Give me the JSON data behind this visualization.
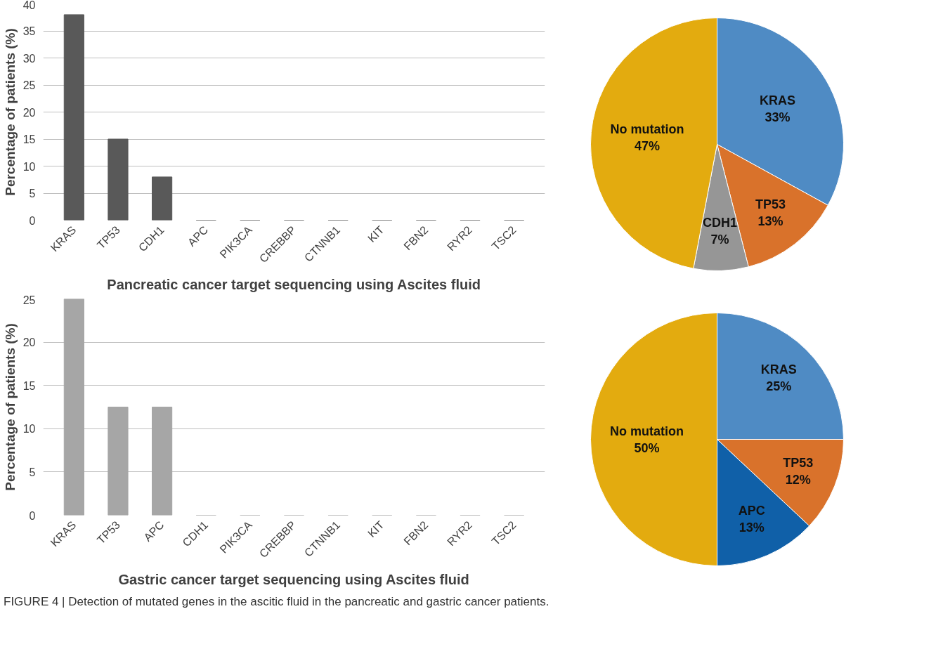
{
  "chart_data": [
    {
      "type": "bar",
      "title": "Pancreatic cancer target sequencing using Ascites fluid",
      "ylabel": "Percentage of patients (%)",
      "categories": [
        "KRAS",
        "TP53",
        "CDH1",
        "APC",
        "PIK3CA",
        "CREBBP",
        "CTNNB1",
        "KIT",
        "FBN2",
        "RYR2",
        "TSC2"
      ],
      "values": [
        38,
        15,
        8,
        0,
        0,
        0,
        0,
        0,
        0,
        0,
        0
      ],
      "color": "#595959",
      "ylim": [
        0,
        40
      ],
      "yticks": [
        0,
        5,
        10,
        15,
        20,
        25,
        30,
        35,
        40
      ],
      "grid": "y"
    },
    {
      "type": "pie",
      "categories": [
        "KRAS",
        "TP53",
        "CDH1",
        "No mutation"
      ],
      "values": [
        33,
        13,
        7,
        47
      ],
      "value_labels": [
        "33%",
        "13%",
        "7%",
        "47%"
      ],
      "colors": [
        "#4f8bc4",
        "#d9722b",
        "#969696",
        "#e3ab0f"
      ]
    },
    {
      "type": "bar",
      "title": "Gastric cancer target sequencing using Ascites fluid",
      "ylabel": "Percentage of patients (%)",
      "categories": [
        "KRAS",
        "TP53",
        "APC",
        "CDH1",
        "PIK3CA",
        "CREBBP",
        "CTNNB1",
        "KIT",
        "FBN2",
        "RYR2",
        "TSC2"
      ],
      "values": [
        25,
        12.5,
        12.5,
        0,
        0,
        0,
        0,
        0,
        0,
        0,
        0
      ],
      "color": "#a6a6a6",
      "ylim": [
        0,
        25
      ],
      "yticks": [
        0,
        5,
        10,
        15,
        20,
        25
      ],
      "grid": "y"
    },
    {
      "type": "pie",
      "categories": [
        "KRAS",
        "TP53",
        "APC",
        "No mutation"
      ],
      "values": [
        25,
        12,
        13,
        50
      ],
      "value_labels": [
        "25%",
        "12%",
        "13%",
        "50%"
      ],
      "colors": [
        "#4f8bc4",
        "#d9722b",
        "#1060a8",
        "#e3ab0f"
      ],
      "annotations": [
        "FIGURE 4 | Detection of mutated genes in the ascitic fluid in the pancreatic and gastric cancer patients."
      ]
    }
  ]
}
